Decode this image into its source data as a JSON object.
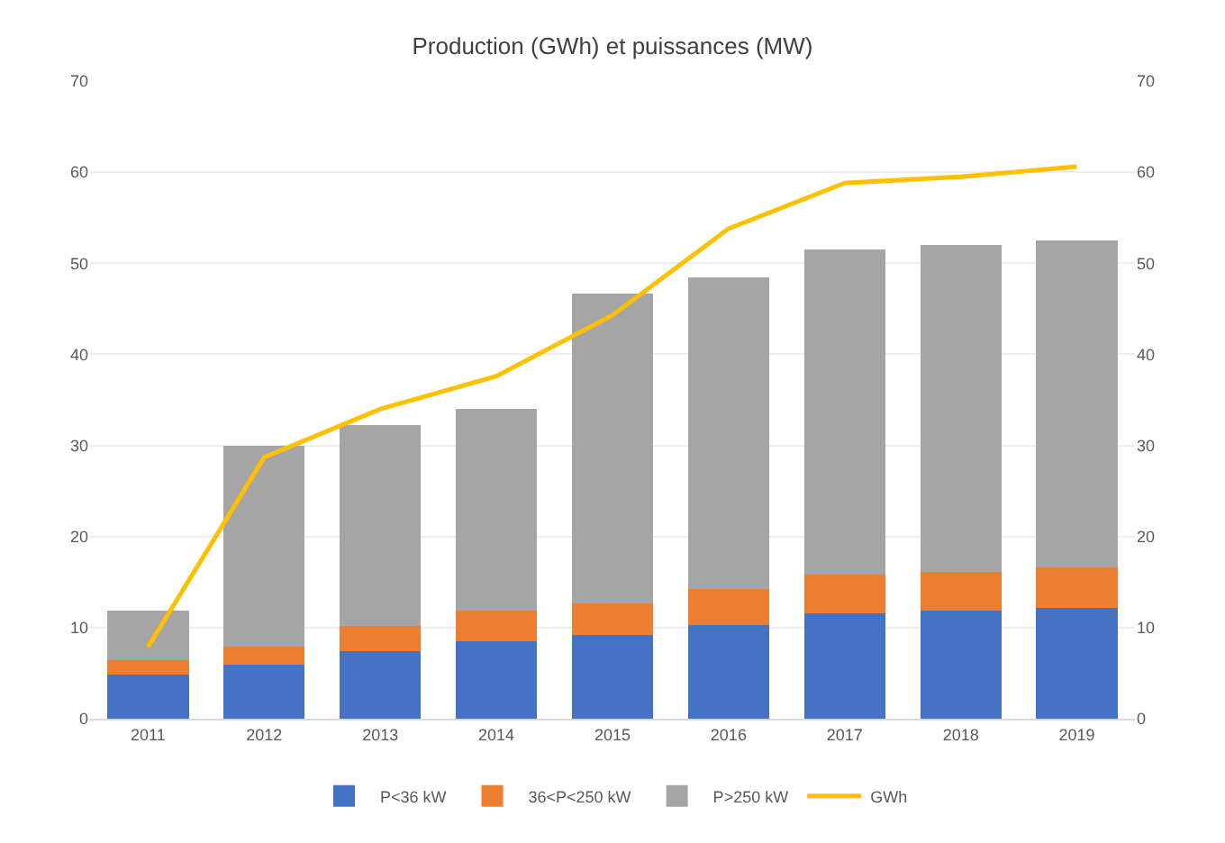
{
  "chart_data": {
    "type": "bar",
    "title": "Production (GWh) et puissances (MW)",
    "stacked": true,
    "categories": [
      "2011",
      "2012",
      "2013",
      "2014",
      "2015",
      "2016",
      "2017",
      "2018",
      "2019"
    ],
    "series": [
      {
        "name": "P<36 kW",
        "color": "#4472c4",
        "values": [
          4.8,
          5.9,
          7.4,
          8.5,
          9.2,
          10.3,
          11.6,
          11.9,
          12.2
        ]
      },
      {
        "name": "36<P<250 kW",
        "color": "#ed7d31",
        "values": [
          1.6,
          2.0,
          2.8,
          3.4,
          3.5,
          3.9,
          4.2,
          4.2,
          4.4
        ]
      },
      {
        "name": "P>250 kW",
        "color": "#a5a5a5",
        "values": [
          5.5,
          22.1,
          22.0,
          22.1,
          34.0,
          34.2,
          35.7,
          35.9,
          35.9
        ]
      },
      {
        "name": "GWh",
        "color": "#ffc000",
        "type": "line",
        "axis": "y2",
        "marker": "none",
        "values": [
          7.9,
          28.7,
          34.0,
          37.6,
          44.3,
          53.8,
          58.8,
          59.5,
          60.6
        ]
      }
    ],
    "ylim": [
      0,
      70
    ],
    "yticks": [
      0,
      10,
      20,
      30,
      40,
      50,
      60,
      70
    ],
    "y2lim": [
      0,
      70
    ],
    "y2ticks": [
      0,
      10,
      20,
      30,
      40,
      50,
      60,
      70
    ],
    "grid": "y",
    "legend": "bottom"
  }
}
